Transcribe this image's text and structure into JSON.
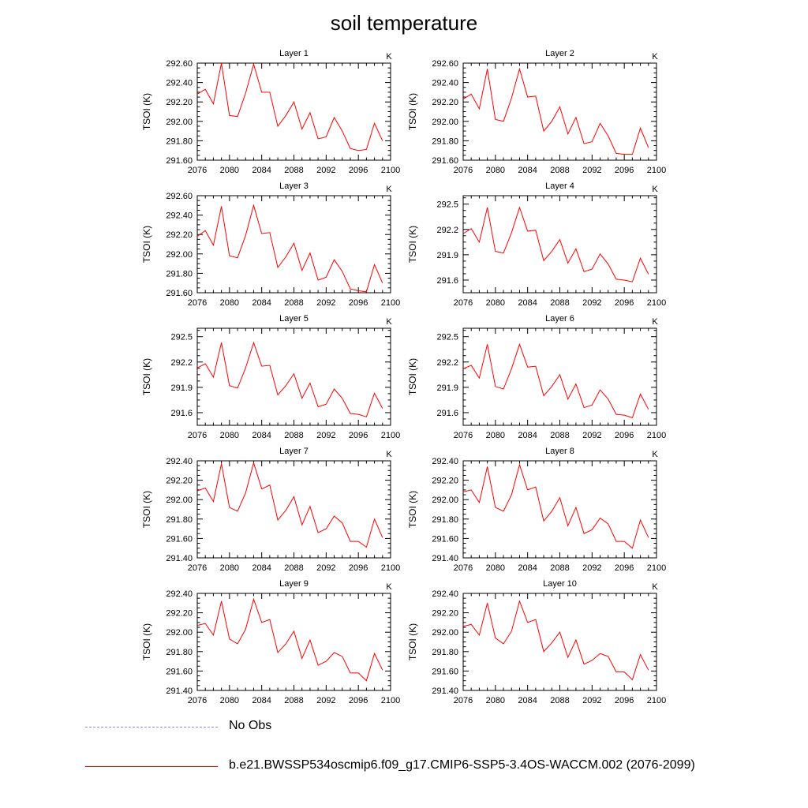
{
  "figure": {
    "title": "soil temperature"
  },
  "legend": {
    "obs_label": "No Obs",
    "obs_color": "#8a8aff",
    "model_label": "b.e21.BWSSP534oscmip6.f09_g17.CMIP6-SSP5-3.4OS-WACCM.002 (2076-2099)",
    "model_color": "#ff0000"
  },
  "chart_data": [
    {
      "type": "line",
      "title": "Layer 1",
      "units": "K",
      "ylabel": "TSOI  (K)",
      "xlim": [
        2076,
        2100
      ],
      "xticks": [
        "2076",
        "2080",
        "2084",
        "2088",
        "2092",
        "2096",
        "2100"
      ],
      "ylim": [
        291.6,
        292.6
      ],
      "yticks": [
        "291.60",
        "291.80",
        "292.00",
        "292.20",
        "292.40",
        "292.60"
      ],
      "series": [
        {
          "name": "b.e21.BWSSP534oscmip6.f09_g17.CMIP6-SSP5-3.4OS-WACCM.002 (2076-2099)",
          "color": "#ff0000",
          "x": [
            2076,
            2077,
            2078,
            2079,
            2080,
            2081,
            2082,
            2083,
            2084,
            2085,
            2086,
            2087,
            2088,
            2089,
            2090,
            2091,
            2092,
            2093,
            2094,
            2095,
            2096,
            2097,
            2098,
            2099
          ],
          "values": [
            292.28,
            292.33,
            292.18,
            292.6,
            292.06,
            292.05,
            292.29,
            292.59,
            292.3,
            292.3,
            291.95,
            292.06,
            292.2,
            291.92,
            292.09,
            291.82,
            291.84,
            292.04,
            291.9,
            291.72,
            291.7,
            291.71,
            291.98,
            291.8
          ]
        }
      ]
    },
    {
      "type": "line",
      "title": "Layer 2",
      "units": "K",
      "ylabel": "TSOI  (K)",
      "xlim": [
        2076,
        2100
      ],
      "xticks": [
        "2076",
        "2080",
        "2084",
        "2088",
        "2092",
        "2096",
        "2100"
      ],
      "ylim": [
        291.6,
        292.6
      ],
      "yticks": [
        "291.60",
        "291.80",
        "292.00",
        "292.20",
        "292.40",
        "292.60"
      ],
      "series": [
        {
          "name": "b.e21.BWSSP534oscmip6.f09_g17.CMIP6-SSP5-3.4OS-WACCM.002 (2076-2099)",
          "color": "#ff0000",
          "x": [
            2076,
            2077,
            2078,
            2079,
            2080,
            2081,
            2082,
            2083,
            2084,
            2085,
            2086,
            2087,
            2088,
            2089,
            2090,
            2091,
            2092,
            2093,
            2094,
            2095,
            2096,
            2097,
            2098,
            2099
          ],
          "values": [
            292.23,
            292.28,
            292.13,
            292.54,
            292.02,
            292.0,
            292.24,
            292.54,
            292.25,
            292.26,
            291.9,
            292.0,
            292.15,
            291.87,
            292.04,
            291.77,
            291.79,
            291.98,
            291.85,
            291.67,
            291.66,
            291.66,
            291.93,
            291.73
          ]
        }
      ]
    },
    {
      "type": "line",
      "title": "Layer 3",
      "units": "K",
      "ylabel": "TSOI  (K)",
      "xlim": [
        2076,
        2100
      ],
      "xticks": [
        "2076",
        "2080",
        "2084",
        "2088",
        "2092",
        "2096",
        "2100"
      ],
      "ylim": [
        291.6,
        292.6
      ],
      "yticks": [
        "291.60",
        "291.80",
        "292.00",
        "292.20",
        "292.40",
        "292.60"
      ],
      "series": [
        {
          "name": "b.e21.BWSSP534oscmip6.f09_g17.CMIP6-SSP5-3.4OS-WACCM.002 (2076-2099)",
          "color": "#ff0000",
          "x": [
            2076,
            2077,
            2078,
            2079,
            2080,
            2081,
            2082,
            2083,
            2084,
            2085,
            2086,
            2087,
            2088,
            2089,
            2090,
            2091,
            2092,
            2093,
            2094,
            2095,
            2096,
            2097,
            2098,
            2099
          ],
          "values": [
            292.18,
            292.24,
            292.09,
            292.49,
            291.98,
            291.96,
            292.19,
            292.5,
            292.21,
            292.22,
            291.86,
            291.97,
            292.11,
            291.83,
            292.01,
            291.73,
            291.76,
            291.94,
            291.82,
            291.64,
            291.62,
            291.61,
            291.89,
            291.7
          ]
        }
      ]
    },
    {
      "type": "line",
      "title": "Layer 4",
      "units": "K",
      "ylabel": "TSOI  (K)",
      "xlim": [
        2076,
        2100
      ],
      "xticks": [
        "2076",
        "2080",
        "2084",
        "2088",
        "2092",
        "2096",
        "2100"
      ],
      "ylim": [
        291.45,
        292.6
      ],
      "yticks": [
        "291.6",
        "291.9",
        "292.2",
        "292.5"
      ],
      "series": [
        {
          "name": "b.e21.BWSSP534oscmip6.f09_g17.CMIP6-SSP5-3.4OS-WACCM.002 (2076-2099)",
          "color": "#ff0000",
          "x": [
            2076,
            2077,
            2078,
            2079,
            2080,
            2081,
            2082,
            2083,
            2084,
            2085,
            2086,
            2087,
            2088,
            2089,
            2090,
            2091,
            2092,
            2093,
            2094,
            2095,
            2096,
            2097,
            2098,
            2099
          ],
          "values": [
            292.15,
            292.21,
            292.05,
            292.46,
            291.94,
            291.92,
            292.16,
            292.46,
            292.18,
            292.19,
            291.83,
            291.94,
            292.08,
            291.8,
            291.97,
            291.7,
            291.73,
            291.91,
            291.79,
            291.61,
            291.6,
            291.58,
            291.86,
            291.67
          ]
        }
      ]
    },
    {
      "type": "line",
      "title": "Layer 5",
      "units": "K",
      "ylabel": "TSOI  (K)",
      "xlim": [
        2076,
        2100
      ],
      "xticks": [
        "2076",
        "2080",
        "2084",
        "2088",
        "2092",
        "2096",
        "2100"
      ],
      "ylim": [
        291.45,
        292.6
      ],
      "yticks": [
        "291.6",
        "291.9",
        "292.2",
        "292.5"
      ],
      "series": [
        {
          "name": "b.e21.BWSSP534oscmip6.f09_g17.CMIP6-SSP5-3.4OS-WACCM.002 (2076-2099)",
          "color": "#ff0000",
          "x": [
            2076,
            2077,
            2078,
            2079,
            2080,
            2081,
            2082,
            2083,
            2084,
            2085,
            2086,
            2087,
            2088,
            2089,
            2090,
            2091,
            2092,
            2093,
            2094,
            2095,
            2096,
            2097,
            2098,
            2099
          ],
          "values": [
            292.13,
            292.18,
            292.02,
            292.43,
            291.92,
            291.89,
            292.13,
            292.43,
            292.15,
            292.16,
            291.81,
            291.92,
            292.06,
            291.77,
            291.95,
            291.67,
            291.7,
            291.88,
            291.77,
            291.59,
            291.58,
            291.55,
            291.83,
            291.65
          ]
        }
      ]
    },
    {
      "type": "line",
      "title": "Layer 6",
      "units": "K",
      "ylabel": "TSOI  (K)",
      "xlim": [
        2076,
        2100
      ],
      "xticks": [
        "2076",
        "2080",
        "2084",
        "2088",
        "2092",
        "2096",
        "2100"
      ],
      "ylim": [
        291.45,
        292.6
      ],
      "yticks": [
        "291.6",
        "291.9",
        "292.2",
        "292.5"
      ],
      "series": [
        {
          "name": "b.e21.BWSSP534oscmip6.f09_g17.CMIP6-SSP5-3.4OS-WACCM.002 (2076-2099)",
          "color": "#ff0000",
          "x": [
            2076,
            2077,
            2078,
            2079,
            2080,
            2081,
            2082,
            2083,
            2084,
            2085,
            2086,
            2087,
            2088,
            2089,
            2090,
            2091,
            2092,
            2093,
            2094,
            2095,
            2096,
            2097,
            2098,
            2099
          ],
          "values": [
            292.12,
            292.16,
            292.01,
            292.41,
            291.91,
            291.88,
            292.12,
            292.41,
            292.14,
            292.15,
            291.8,
            291.91,
            292.05,
            291.76,
            291.94,
            291.66,
            291.69,
            291.87,
            291.76,
            291.58,
            291.57,
            291.54,
            291.82,
            291.64
          ]
        }
      ]
    },
    {
      "type": "line",
      "title": "Layer 7",
      "units": "K",
      "ylabel": "TSOI  (K)",
      "xlim": [
        2076,
        2100
      ],
      "xticks": [
        "2076",
        "2080",
        "2084",
        "2088",
        "2092",
        "2096",
        "2100"
      ],
      "ylim": [
        291.4,
        292.4
      ],
      "yticks": [
        "291.40",
        "291.60",
        "291.80",
        "292.00",
        "292.20",
        "292.40"
      ],
      "series": [
        {
          "name": "b.e21.BWSSP534oscmip6.f09_g17.CMIP6-SSP5-3.4OS-WACCM.002 (2076-2099)",
          "color": "#ff0000",
          "x": [
            2076,
            2077,
            2078,
            2079,
            2080,
            2081,
            2082,
            2083,
            2084,
            2085,
            2086,
            2087,
            2088,
            2089,
            2090,
            2091,
            2092,
            2093,
            2094,
            2095,
            2096,
            2097,
            2098,
            2099
          ],
          "values": [
            292.09,
            292.12,
            291.98,
            292.37,
            291.92,
            291.88,
            292.07,
            292.38,
            292.11,
            292.15,
            291.79,
            291.89,
            292.03,
            291.74,
            291.93,
            291.66,
            291.7,
            291.83,
            291.76,
            291.57,
            291.57,
            291.51,
            291.8,
            291.61
          ]
        }
      ]
    },
    {
      "type": "line",
      "title": "Layer 8",
      "units": "K",
      "ylabel": "TSOI  (K)",
      "xlim": [
        2076,
        2100
      ],
      "xticks": [
        "2076",
        "2080",
        "2084",
        "2088",
        "2092",
        "2096",
        "2100"
      ],
      "ylim": [
        291.4,
        292.4
      ],
      "yticks": [
        "291.40",
        "291.60",
        "291.80",
        "292.00",
        "292.20",
        "292.40"
      ],
      "series": [
        {
          "name": "b.e21.BWSSP534oscmip6.f09_g17.CMIP6-SSP5-3.4OS-WACCM.002 (2076-2099)",
          "color": "#ff0000",
          "x": [
            2076,
            2077,
            2078,
            2079,
            2080,
            2081,
            2082,
            2083,
            2084,
            2085,
            2086,
            2087,
            2088,
            2089,
            2090,
            2091,
            2092,
            2093,
            2094,
            2095,
            2096,
            2097,
            2098,
            2099
          ],
          "values": [
            292.08,
            292.1,
            291.97,
            292.34,
            291.92,
            291.88,
            292.05,
            292.36,
            292.1,
            292.13,
            291.78,
            291.88,
            292.02,
            291.73,
            291.92,
            291.65,
            291.69,
            291.81,
            291.75,
            291.57,
            291.57,
            291.5,
            291.79,
            291.61
          ]
        }
      ]
    },
    {
      "type": "line",
      "title": "Layer 9",
      "units": "K",
      "ylabel": "TSOI  (K)",
      "xlim": [
        2076,
        2100
      ],
      "xticks": [
        "2076",
        "2080",
        "2084",
        "2088",
        "2092",
        "2096",
        "2100"
      ],
      "ylim": [
        291.4,
        292.4
      ],
      "yticks": [
        "291.40",
        "291.60",
        "291.80",
        "292.00",
        "292.20",
        "292.40"
      ],
      "series": [
        {
          "name": "b.e21.BWSSP534oscmip6.f09_g17.CMIP6-SSP5-3.4OS-WACCM.002 (2076-2099)",
          "color": "#ff0000",
          "x": [
            2076,
            2077,
            2078,
            2079,
            2080,
            2081,
            2082,
            2083,
            2084,
            2085,
            2086,
            2087,
            2088,
            2089,
            2090,
            2091,
            2092,
            2093,
            2094,
            2095,
            2096,
            2097,
            2098,
            2099
          ],
          "values": [
            292.07,
            292.09,
            291.97,
            292.32,
            291.93,
            291.88,
            292.03,
            292.34,
            292.1,
            292.13,
            291.79,
            291.88,
            292.01,
            291.73,
            291.92,
            291.66,
            291.7,
            291.79,
            291.75,
            291.58,
            291.58,
            291.5,
            291.78,
            291.61
          ]
        }
      ]
    },
    {
      "type": "line",
      "title": "Layer 10",
      "units": "K",
      "ylabel": "TSOI  (K)",
      "xlim": [
        2076,
        2100
      ],
      "xticks": [
        "2076",
        "2080",
        "2084",
        "2088",
        "2092",
        "2096",
        "2100"
      ],
      "ylim": [
        291.4,
        292.4
      ],
      "yticks": [
        "291.40",
        "291.60",
        "291.80",
        "292.00",
        "292.20",
        "292.40"
      ],
      "series": [
        {
          "name": "b.e21.BWSSP534oscmip6.f09_g17.CMIP6-SSP5-3.4OS-WACCM.002 (2076-2099)",
          "color": "#ff0000",
          "x": [
            2076,
            2077,
            2078,
            2079,
            2080,
            2081,
            2082,
            2083,
            2084,
            2085,
            2086,
            2087,
            2088,
            2089,
            2090,
            2091,
            2092,
            2093,
            2094,
            2095,
            2096,
            2097,
            2098,
            2099
          ],
          "values": [
            292.06,
            292.08,
            291.97,
            292.3,
            291.94,
            291.88,
            292.01,
            292.32,
            292.1,
            292.13,
            291.8,
            291.89,
            292.0,
            291.74,
            291.92,
            291.67,
            291.71,
            291.78,
            291.75,
            291.59,
            291.59,
            291.51,
            291.77,
            291.61
          ]
        }
      ]
    }
  ]
}
